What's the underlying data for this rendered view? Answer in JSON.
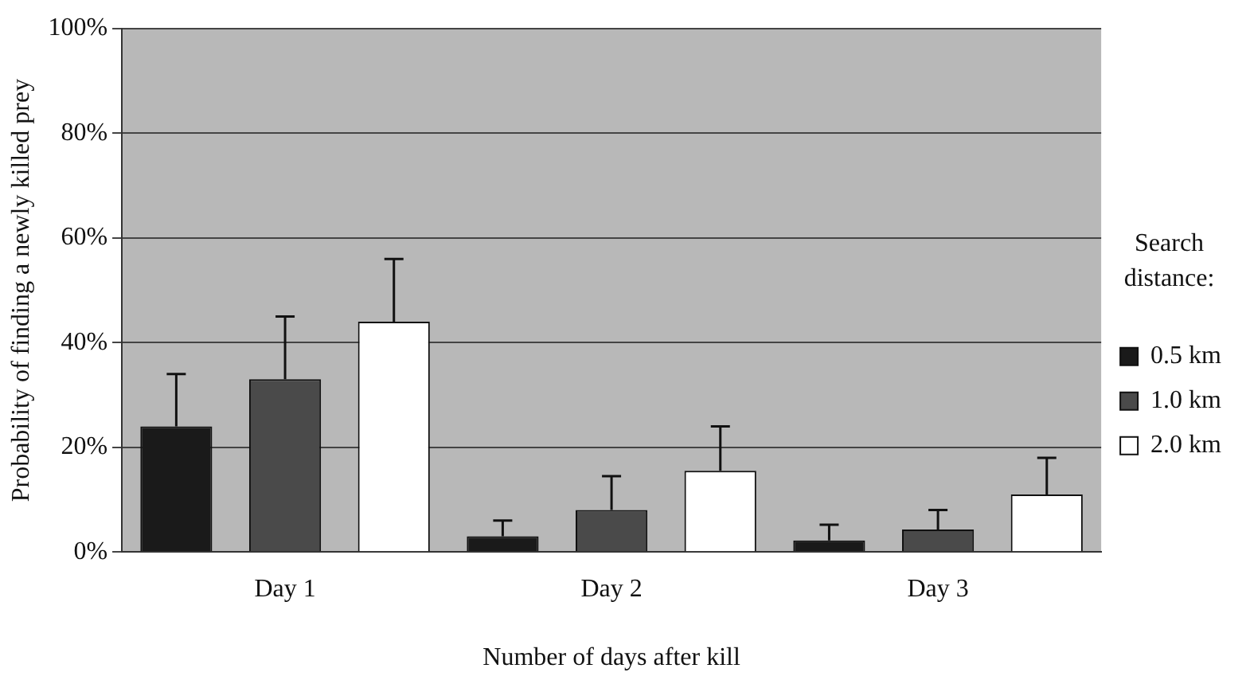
{
  "chart_data": {
    "type": "bar",
    "xlabel": "Number of days after kill",
    "ylabel": "Probability of finding a newly killed prey",
    "legend_title": "Search distance:",
    "categories": [
      "Day 1",
      "Day 2",
      "Day 3"
    ],
    "series": [
      {
        "name": "0.5 km",
        "color": "#1a1a1a",
        "values": [
          24,
          3,
          2.2
        ],
        "errors": [
          [
            24,
            34
          ],
          [
            3,
            6
          ],
          [
            2.2,
            5.2
          ]
        ]
      },
      {
        "name": "1.0 km",
        "color": "#4a4a4a",
        "values": [
          33,
          8,
          4.3
        ],
        "errors": [
          [
            33,
            45
          ],
          [
            8,
            14.5
          ],
          [
            4.3,
            8
          ]
        ]
      },
      {
        "name": "2.0 km",
        "color": "#ffffff",
        "values": [
          44,
          15.5,
          11
        ],
        "errors": [
          [
            44,
            56
          ],
          [
            15.5,
            24
          ],
          [
            11,
            18
          ]
        ]
      }
    ],
    "ylim": [
      0,
      100
    ],
    "yticks": [
      {
        "value": 0,
        "label": "0%"
      },
      {
        "value": 20,
        "label": "20%"
      },
      {
        "value": 40,
        "label": "40%"
      },
      {
        "value": 60,
        "label": "60%"
      },
      {
        "value": 80,
        "label": "80%"
      },
      {
        "value": 100,
        "label": "100%"
      }
    ],
    "grid": "y",
    "legend": "right"
  }
}
